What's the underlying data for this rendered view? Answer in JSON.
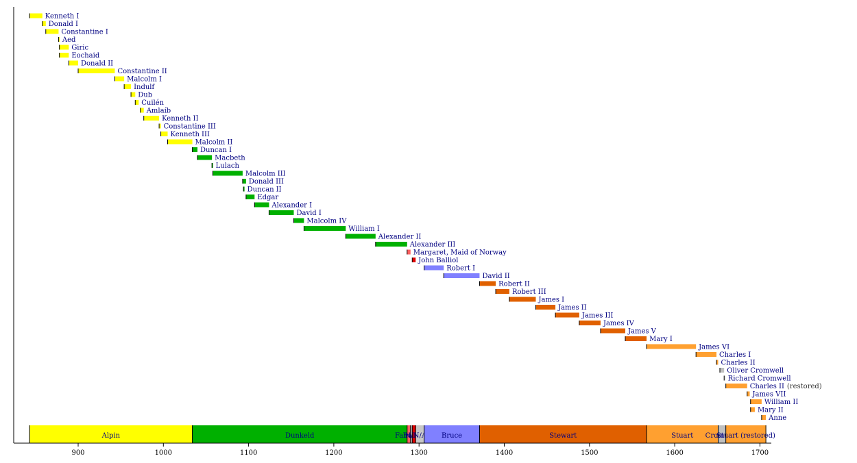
{
  "chart_data": {
    "type": "timeline",
    "title": "",
    "xlabel": "",
    "ylabel": "",
    "xlim": [
      840,
      1710
    ],
    "ticks": [
      900,
      1000,
      1100,
      1200,
      1300,
      1400,
      1500,
      1600,
      1700
    ],
    "grid": false,
    "dynasty_colors": {
      "Alpin": "#ffff00",
      "Dunkeld": "#00b000",
      "Fairhair": "#ff6060",
      "Balliol": "#e00000",
      "Interregnum": "#c8c8c8",
      "Bruce": "#8080ff",
      "Stewart": "#e06000",
      "Stuart": "#ffa030",
      "Cromwell": "#c0c0c0"
    },
    "monarchs": [
      {
        "name": "Kenneth I",
        "start": 843,
        "end": 858,
        "dynasty": "Alpin"
      },
      {
        "name": "Donald I",
        "start": 858,
        "end": 862,
        "dynasty": "Alpin"
      },
      {
        "name": "Constantine I",
        "start": 862,
        "end": 877,
        "dynasty": "Alpin"
      },
      {
        "name": "Aed",
        "start": 877,
        "end": 878,
        "dynasty": "Alpin"
      },
      {
        "name": "Giric",
        "start": 878,
        "end": 889,
        "dynasty": "Alpin"
      },
      {
        "name": "Eochaid",
        "start": 878,
        "end": 889,
        "dynasty": "Alpin"
      },
      {
        "name": "Donald II",
        "start": 889,
        "end": 900,
        "dynasty": "Alpin"
      },
      {
        "name": "Constantine II",
        "start": 900,
        "end": 943,
        "dynasty": "Alpin"
      },
      {
        "name": "Malcolm I",
        "start": 943,
        "end": 954,
        "dynasty": "Alpin"
      },
      {
        "name": "Indulf",
        "start": 954,
        "end": 962,
        "dynasty": "Alpin"
      },
      {
        "name": "Dub",
        "start": 962,
        "end": 967,
        "dynasty": "Alpin"
      },
      {
        "name": "Cuilén",
        "start": 967,
        "end": 971,
        "dynasty": "Alpin"
      },
      {
        "name": "Amlaíb",
        "start": 973,
        "end": 977,
        "dynasty": "Alpin"
      },
      {
        "name": "Kenneth II",
        "start": 977,
        "end": 995,
        "dynasty": "Alpin"
      },
      {
        "name": "Constantine III",
        "start": 995,
        "end": 997,
        "dynasty": "Alpin"
      },
      {
        "name": "Kenneth III",
        "start": 997,
        "end": 1005,
        "dynasty": "Alpin"
      },
      {
        "name": "Malcolm II",
        "start": 1005,
        "end": 1034,
        "dynasty": "Alpin"
      },
      {
        "name": "Duncan I",
        "start": 1034,
        "end": 1040,
        "dynasty": "Dunkeld"
      },
      {
        "name": "Macbeth",
        "start": 1040,
        "end": 1057,
        "dynasty": "Dunkeld"
      },
      {
        "name": "Lulach",
        "start": 1057,
        "end": 1058,
        "dynasty": "Dunkeld"
      },
      {
        "name": "Malcolm III",
        "start": 1058,
        "end": 1093,
        "dynasty": "Dunkeld"
      },
      {
        "name": "Donald III",
        "start": 1093,
        "end": 1097,
        "dynasty": "Dunkeld"
      },
      {
        "name": "Duncan II",
        "start": 1094,
        "end": 1094.5,
        "dynasty": "Dunkeld"
      },
      {
        "name": "Edgar",
        "start": 1097,
        "end": 1107,
        "dynasty": "Dunkeld"
      },
      {
        "name": "Alexander I",
        "start": 1107,
        "end": 1124,
        "dynasty": "Dunkeld"
      },
      {
        "name": "David I",
        "start": 1124,
        "end": 1153,
        "dynasty": "Dunkeld"
      },
      {
        "name": "Malcolm IV",
        "start": 1153,
        "end": 1165,
        "dynasty": "Dunkeld"
      },
      {
        "name": "William I",
        "start": 1165,
        "end": 1214,
        "dynasty": "Dunkeld"
      },
      {
        "name": "Alexander II",
        "start": 1214,
        "end": 1249,
        "dynasty": "Dunkeld"
      },
      {
        "name": "Alexander III",
        "start": 1249,
        "end": 1286,
        "dynasty": "Dunkeld"
      },
      {
        "name": "Margaret, Maid of Norway",
        "start": 1286,
        "end": 1290,
        "dynasty": "Fairhair"
      },
      {
        "name": "John Balliol",
        "start": 1292,
        "end": 1296,
        "dynasty": "Balliol"
      },
      {
        "name": "Robert I",
        "start": 1306,
        "end": 1329,
        "dynasty": "Bruce"
      },
      {
        "name": "David II",
        "start": 1329,
        "end": 1371,
        "dynasty": "Bruce"
      },
      {
        "name": "Robert II",
        "start": 1371,
        "end": 1390,
        "dynasty": "Stewart"
      },
      {
        "name": "Robert III",
        "start": 1390,
        "end": 1406,
        "dynasty": "Stewart"
      },
      {
        "name": "James I",
        "start": 1406,
        "end": 1437,
        "dynasty": "Stewart"
      },
      {
        "name": "James II",
        "start": 1437,
        "end": 1460,
        "dynasty": "Stewart"
      },
      {
        "name": "James III",
        "start": 1460,
        "end": 1488,
        "dynasty": "Stewart"
      },
      {
        "name": "James IV",
        "start": 1488,
        "end": 1513,
        "dynasty": "Stewart"
      },
      {
        "name": "James V",
        "start": 1513,
        "end": 1542,
        "dynasty": "Stewart"
      },
      {
        "name": "Mary I",
        "start": 1542,
        "end": 1567,
        "dynasty": "Stewart"
      },
      {
        "name": "James VI",
        "start": 1567,
        "end": 1625,
        "dynasty": "Stuart"
      },
      {
        "name": "Charles I",
        "start": 1625,
        "end": 1649,
        "dynasty": "Stuart"
      },
      {
        "name": "Charles II",
        "start": 1649,
        "end": 1651,
        "dynasty": "Stuart"
      },
      {
        "name": "Oliver Cromwell",
        "start": 1653,
        "end": 1658,
        "dynasty": "Cromwell"
      },
      {
        "name": "Richard Cromwell",
        "start": 1658,
        "end": 1659,
        "dynasty": "Cromwell"
      },
      {
        "name": "Charles II",
        "note": "(restored)",
        "start": 1660,
        "end": 1685,
        "dynasty": "Stuart"
      },
      {
        "name": "James VII",
        "start": 1685,
        "end": 1688,
        "dynasty": "Stuart"
      },
      {
        "name": "William II",
        "start": 1689,
        "end": 1702,
        "dynasty": "Stuart"
      },
      {
        "name": "Mary II",
        "start": 1689,
        "end": 1694,
        "dynasty": "Stuart"
      },
      {
        "name": "Anne",
        "start": 1702,
        "end": 1707,
        "dynasty": "Stuart"
      }
    ],
    "dynasties": [
      {
        "name": "Alpin",
        "start": 843,
        "end": 1034,
        "color": "#ffff00"
      },
      {
        "name": "Dunkeld",
        "start": 1034,
        "end": 1286,
        "color": "#00b000"
      },
      {
        "name": "Fairhair",
        "start": 1286,
        "end": 1290,
        "color": "#ff6060"
      },
      {
        "name": "N/A",
        "start": 1290,
        "end": 1292,
        "color": "#c8c8c8"
      },
      {
        "name": "Balliol",
        "start": 1292,
        "end": 1296,
        "color": "#e00000"
      },
      {
        "name": "N/A",
        "start": 1296,
        "end": 1306,
        "color": "#c8c8c8"
      },
      {
        "name": "Bruce",
        "start": 1306,
        "end": 1371,
        "color": "#8080ff"
      },
      {
        "name": "Stewart",
        "start": 1371,
        "end": 1567,
        "color": "#e06000"
      },
      {
        "name": "Stuart",
        "start": 1567,
        "end": 1651,
        "color": "#ffa030"
      },
      {
        "name": "Cromwell",
        "start": 1651,
        "end": 1660,
        "color": "#c0c0c0"
      },
      {
        "name": "Stuart (restored)",
        "start": 1660,
        "end": 1707,
        "color": "#ffa030"
      }
    ]
  }
}
